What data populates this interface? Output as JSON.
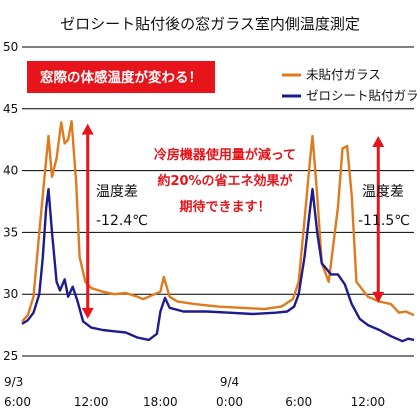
{
  "chart_data": {
    "type": "line",
    "title": "ゼロシート貼付後の窓ガラス室内側温度測定",
    "ylim": [
      25,
      50
    ],
    "yticks": [
      25,
      30,
      35,
      40,
      45,
      50
    ],
    "xlim": [
      0,
      34
    ],
    "xticks": [
      {
        "x": 0,
        "day": "9/3",
        "time": "6:00"
      },
      {
        "x": 6,
        "day": "",
        "time": "12:00"
      },
      {
        "x": 12,
        "day": "",
        "time": "18:00"
      },
      {
        "x": 18,
        "day": "9/4",
        "time": "0:00"
      },
      {
        "x": 24,
        "day": "",
        "time": "6:00"
      },
      {
        "x": 30,
        "day": "",
        "time": "12:00"
      }
    ],
    "grid": true,
    "legend_position": "top-right",
    "series": [
      {
        "name": "未貼付ガラス",
        "color": "#e07a1f",
        "points": [
          [
            0,
            27.8
          ],
          [
            0.5,
            28.3
          ],
          [
            1,
            29.8
          ],
          [
            1.5,
            35
          ],
          [
            2,
            40
          ],
          [
            2.3,
            42.8
          ],
          [
            2.6,
            39.5
          ],
          [
            3,
            41
          ],
          [
            3.4,
            43.9
          ],
          [
            3.7,
            42.2
          ],
          [
            4,
            42.5
          ],
          [
            4.3,
            44
          ],
          [
            4.7,
            39
          ],
          [
            5,
            33
          ],
          [
            5.5,
            31
          ],
          [
            6,
            30.5
          ],
          [
            7,
            30.2
          ],
          [
            8,
            30
          ],
          [
            9,
            30.1
          ],
          [
            10,
            29.8
          ],
          [
            10.5,
            29.6
          ],
          [
            11,
            29.8
          ],
          [
            11.5,
            30
          ],
          [
            12,
            30.2
          ],
          [
            12.3,
            31.4
          ],
          [
            12.8,
            29.8
          ],
          [
            13.5,
            29.4
          ],
          [
            15,
            29.2
          ],
          [
            17,
            29
          ],
          [
            19,
            28.9
          ],
          [
            21,
            28.8
          ],
          [
            22.5,
            29
          ],
          [
            23.5,
            29.6
          ],
          [
            24,
            31
          ],
          [
            24.5,
            36
          ],
          [
            25,
            41
          ],
          [
            25.2,
            42.8
          ],
          [
            25.6,
            38
          ],
          [
            26,
            32.5
          ],
          [
            26.6,
            31
          ],
          [
            27.4,
            37
          ],
          [
            27.8,
            41.8
          ],
          [
            28.2,
            42
          ],
          [
            28.6,
            38
          ],
          [
            29,
            31
          ],
          [
            30,
            29.8
          ],
          [
            31,
            29.4
          ],
          [
            32,
            29.2
          ],
          [
            32.7,
            28.5
          ],
          [
            33.3,
            28.6
          ],
          [
            34,
            28.3
          ]
        ]
      },
      {
        "name": "ゼロシート貼付ガラス",
        "color": "#1c1c8e",
        "points": [
          [
            0,
            27.6
          ],
          [
            0.5,
            27.9
          ],
          [
            1,
            28.5
          ],
          [
            1.5,
            30
          ],
          [
            1.8,
            33
          ],
          [
            2.1,
            37
          ],
          [
            2.3,
            38.5
          ],
          [
            2.6,
            35
          ],
          [
            3,
            31
          ],
          [
            3.3,
            30.3
          ],
          [
            3.7,
            31.2
          ],
          [
            4,
            29.8
          ],
          [
            4.4,
            30.6
          ],
          [
            4.8,
            29.5
          ],
          [
            5.3,
            27.8
          ],
          [
            6,
            27.3
          ],
          [
            7,
            27.1
          ],
          [
            8,
            27
          ],
          [
            9,
            26.9
          ],
          [
            10,
            26.5
          ],
          [
            11,
            26.3
          ],
          [
            11.7,
            26.8
          ],
          [
            12,
            28.6
          ],
          [
            12.4,
            29.7
          ],
          [
            12.8,
            28.9
          ],
          [
            14,
            28.6
          ],
          [
            16,
            28.6
          ],
          [
            18,
            28.5
          ],
          [
            20,
            28.4
          ],
          [
            22,
            28.5
          ],
          [
            23,
            28.6
          ],
          [
            23.6,
            29
          ],
          [
            24,
            30
          ],
          [
            24.5,
            33
          ],
          [
            25,
            37
          ],
          [
            25.2,
            38.5
          ],
          [
            25.6,
            35
          ],
          [
            26,
            32.5
          ],
          [
            26.8,
            31.6
          ],
          [
            27.4,
            31.6
          ],
          [
            28,
            30.8
          ],
          [
            28.6,
            29.2
          ],
          [
            29.3,
            28
          ],
          [
            30,
            27.5
          ],
          [
            31,
            27.1
          ],
          [
            32,
            26.6
          ],
          [
            33,
            26.2
          ],
          [
            33.5,
            26.4
          ],
          [
            34,
            26.3
          ]
        ]
      }
    ],
    "annotations": {
      "badge": "窓際の体感温度が変わる！",
      "center_note_lines": [
        "冷房機器使用量が減って",
        "約20%の省エネ効果が",
        "期待できます！"
      ],
      "left_diff": {
        "label": "温度差",
        "value": "-12.4℃",
        "top": 43.8,
        "bottom": 28.0,
        "x": 5.7
      },
      "right_diff": {
        "label": "温度差",
        "value": "-11.5℃",
        "top": 42.8,
        "bottom": 29.3,
        "x": 30.9
      }
    }
  },
  "colors": {
    "annotation_red": "#e8141b",
    "grid": "#000000",
    "arrow": "#e8141b"
  }
}
